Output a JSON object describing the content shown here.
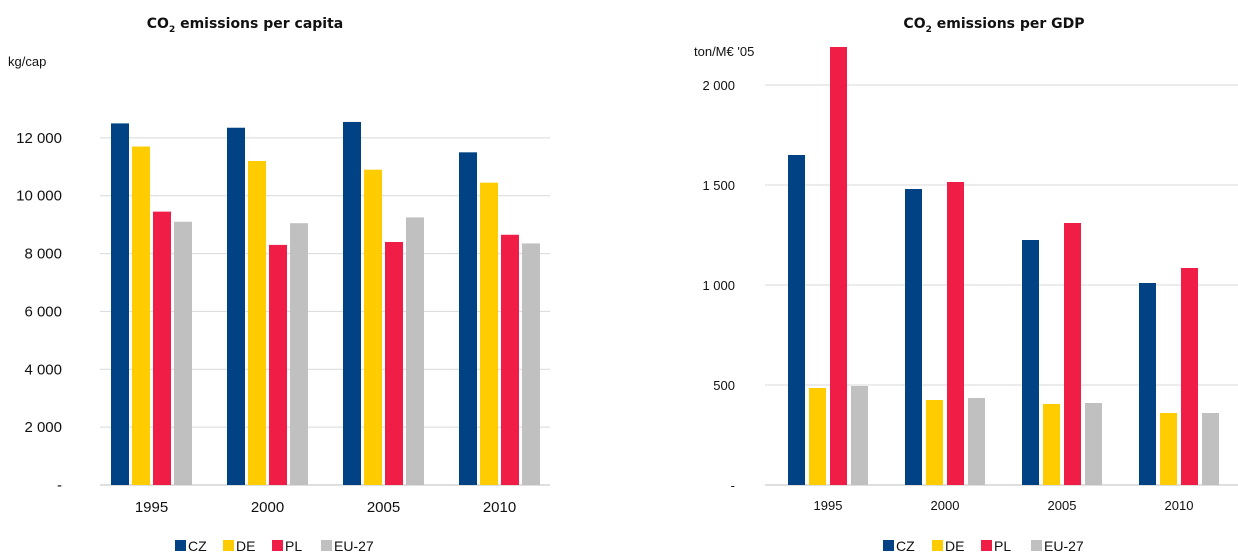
{
  "colors": {
    "CZ": "#004283",
    "DE": "#ffcc00",
    "PL": "#f01e46",
    "EU-27": "#c0c0c0"
  },
  "chart_data": [
    {
      "type": "bar",
      "title_main": "CO",
      "title_sub": "2",
      "title_rest": " emissions per capita",
      "unit": "kg/cap",
      "categories": [
        "1995",
        "2000",
        "2005",
        "2010"
      ],
      "ylim": [
        0,
        14000
      ],
      "yticks": [
        0,
        2000,
        4000,
        6000,
        8000,
        10000,
        12000
      ],
      "ytick_labels": [
        "-",
        "2 000",
        "4 000",
        "6 000",
        "8 000",
        "10 000",
        "12 000"
      ],
      "grid": true,
      "legend_position": "bottom",
      "series": [
        {
          "name": "CZ",
          "values": [
            12500,
            12350,
            12550,
            11500
          ]
        },
        {
          "name": "DE",
          "values": [
            11700,
            11200,
            10900,
            10450
          ]
        },
        {
          "name": "PL",
          "values": [
            9450,
            8300,
            8400,
            8650
          ]
        },
        {
          "name": "EU-27",
          "values": [
            9100,
            9050,
            9250,
            8350
          ]
        }
      ]
    },
    {
      "type": "bar",
      "title_main": "CO",
      "title_sub": "2",
      "title_rest": " emissions per GDP",
      "unit": "ton/M€ '05",
      "categories": [
        "1995",
        "2000",
        "2005",
        "2010"
      ],
      "ylim": [
        0,
        2200
      ],
      "yticks": [
        0,
        500,
        1000,
        1500,
        2000
      ],
      "ytick_labels": [
        "-",
        "500",
        "1 000",
        "1 500",
        "2 000"
      ],
      "grid": true,
      "legend_position": "bottom",
      "series": [
        {
          "name": "CZ",
          "values": [
            1650,
            1480,
            1225,
            1010
          ]
        },
        {
          "name": "DE",
          "values": [
            485,
            425,
            405,
            360
          ]
        },
        {
          "name": "PL",
          "values": [
            2190,
            1515,
            1310,
            1085
          ]
        },
        {
          "name": "EU-27",
          "values": [
            495,
            435,
            410,
            360
          ]
        }
      ]
    }
  ]
}
